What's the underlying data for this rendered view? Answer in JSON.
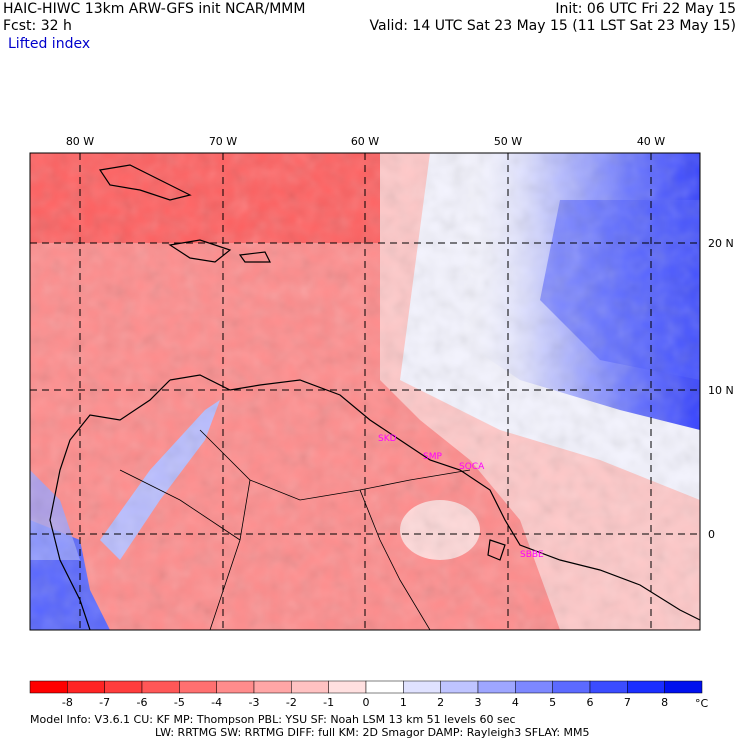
{
  "header": {
    "title_left": "HAIC-HIWC 13km ARW-GFS init   NCAR/MMM",
    "fcst": "Fcst:    32 h",
    "field": "Lifted index",
    "init": "Init: 06 UTC Fri 22 May 15",
    "valid": "Valid: 14 UTC Sat 23 May 15 (11 LST Sat 23 May 15)"
  },
  "map": {
    "lon_labels": [
      "80 W",
      "70 W",
      "60 W",
      "50 W",
      "40 W"
    ],
    "lat_labels": [
      "20 N",
      "10 N",
      "0"
    ],
    "stations": [
      "SKD",
      "SMP",
      "SOCA",
      "SBBE"
    ],
    "colors": {
      "neg8": "#ff1f1f",
      "neg6": "#ff4d4d",
      "neg4": "#ff8080",
      "neg2": "#ffb3b3",
      "zero": "#ffffff",
      "pos2": "#c8ccff",
      "pos4": "#8c96ff",
      "pos6": "#5560ff",
      "pos8": "#1a1aee",
      "station": "#ff00ff",
      "coast": "#000000"
    }
  },
  "colorbar": {
    "labels": [
      "-8",
      "-7",
      "-6",
      "-5",
      "-4",
      "-3",
      "-2",
      "-1",
      "0",
      "1",
      "2",
      "3",
      "4",
      "5",
      "6",
      "7",
      "8"
    ],
    "unit": "°C",
    "colors": [
      "#ff0000",
      "#ff2424",
      "#ff3d3d",
      "#ff5757",
      "#ff7070",
      "#ff8c8c",
      "#ffa6a6",
      "#ffc2c2",
      "#ffe0e0",
      "#ffffff",
      "#e0e2ff",
      "#bfc4ff",
      "#9ea6ff",
      "#7d88ff",
      "#5c6aff",
      "#3b4cff",
      "#1a2eff",
      "#0010ee"
    ]
  },
  "footer": {
    "line1": "Model Info: V3.6.1    CU: KF      MP: Thompson     PBL: YSU       SF: Noah LSM      13 km    51 levels   60 sec",
    "line2": "LW: RRTMG    SW: RRTMG   DIFF: full    KM: 2D Smagor DAMP: Rayleigh3   SFLAY: MM5"
  }
}
